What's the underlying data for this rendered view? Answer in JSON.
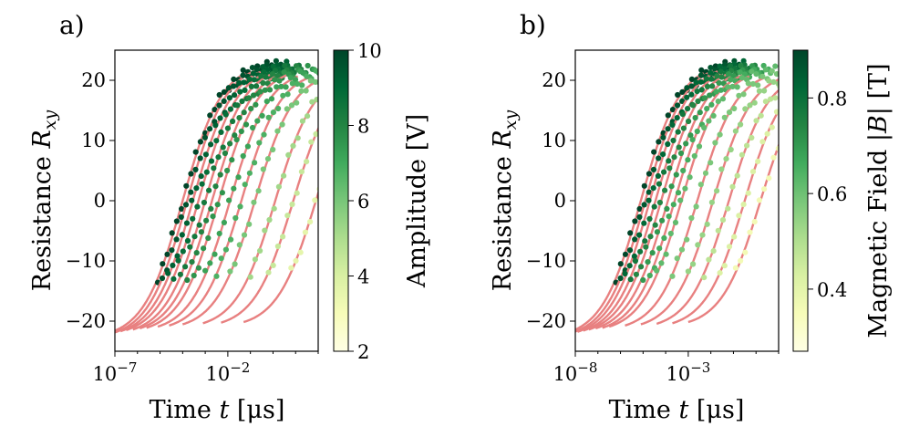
{
  "chart_data": [
    {
      "type": "scatter",
      "panel_label": "a)",
      "xlabel": "Time t [μs]",
      "ylabel": "Resistance R_xy",
      "xscale": "log",
      "xlim_log10": [
        -7,
        2
      ],
      "ylim": [
        -25,
        25
      ],
      "x_ticks": [
        "10^-7",
        "10^-2"
      ],
      "y_ticks": [
        -20,
        -10,
        0,
        10,
        20
      ],
      "colorbar": {
        "label": "Amplitude [V]",
        "min": 2,
        "max": 10,
        "ticks": [
          2,
          4,
          6,
          8,
          10
        ],
        "cmap": "YlGn"
      },
      "fit_color": "#e88080",
      "series": [
        {
          "c": 10.0,
          "shift_log10": -4.0,
          "ymax": 23.0
        },
        {
          "c": 9.6,
          "shift_log10": -3.8,
          "ymax": 23.0
        },
        {
          "c": 9.2,
          "shift_log10": -3.55,
          "ymax": 22.8
        },
        {
          "c": 8.8,
          "shift_log10": -3.3,
          "ymax": 22.6
        },
        {
          "c": 8.4,
          "shift_log10": -3.0,
          "ymax": 22.5
        },
        {
          "c": 8.0,
          "shift_log10": -2.7,
          "ymax": 22.3
        },
        {
          "c": 7.6,
          "shift_log10": -2.4,
          "ymax": 22.2
        },
        {
          "c": 7.2,
          "shift_log10": -1.9,
          "ymax": 22.0
        },
        {
          "c": 6.8,
          "shift_log10": -1.4,
          "ymax": 21.8
        },
        {
          "c": 6.0,
          "shift_log10": -0.8,
          "ymax": 21.6
        },
        {
          "c": 5.2,
          "shift_log10": 0.1,
          "ymax": 21.4
        },
        {
          "c": 4.4,
          "shift_log10": 0.9,
          "ymax": 21.3
        },
        {
          "c": 3.6,
          "shift_log10": 1.9,
          "ymax": 21.2
        }
      ]
    },
    {
      "type": "scatter",
      "panel_label": "b)",
      "xlabel": "Time t [μs]",
      "ylabel": "Resistance R_xy",
      "xscale": "log",
      "xlim_log10": [
        -8,
        1
      ],
      "ylim": [
        -25,
        25
      ],
      "x_ticks": [
        "10^-8",
        "10^-3"
      ],
      "y_ticks": [
        -20,
        -10,
        0,
        10,
        20
      ],
      "colorbar": {
        "label": "Magnetic Field |B| [T]",
        "min": 0.27,
        "max": 0.9,
        "ticks": [
          0.4,
          0.6,
          0.8
        ],
        "cmap": "YlGn"
      },
      "fit_color": "#e88080",
      "series": [
        {
          "c": 0.9,
          "shift_log10": -5.1,
          "ymax": 23.0
        },
        {
          "c": 0.86,
          "shift_log10": -4.9,
          "ymax": 23.0
        },
        {
          "c": 0.82,
          "shift_log10": -4.7,
          "ymax": 22.9
        },
        {
          "c": 0.78,
          "shift_log10": -4.45,
          "ymax": 22.7
        },
        {
          "c": 0.74,
          "shift_log10": -4.2,
          "ymax": 22.5
        },
        {
          "c": 0.7,
          "shift_log10": -3.9,
          "ymax": 22.3
        },
        {
          "c": 0.66,
          "shift_log10": -3.6,
          "ymax": 22.2
        },
        {
          "c": 0.62,
          "shift_log10": -3.3,
          "ymax": 22.0
        },
        {
          "c": 0.58,
          "shift_log10": -2.6,
          "ymax": 21.8
        },
        {
          "c": 0.54,
          "shift_log10": -1.9,
          "ymax": 21.6
        },
        {
          "c": 0.48,
          "shift_log10": -1.2,
          "ymax": 21.5
        },
        {
          "c": 0.42,
          "shift_log10": -0.5,
          "ymax": 21.4
        },
        {
          "c": 0.36,
          "shift_log10": 0.2,
          "ymax": 21.2
        }
      ]
    }
  ]
}
